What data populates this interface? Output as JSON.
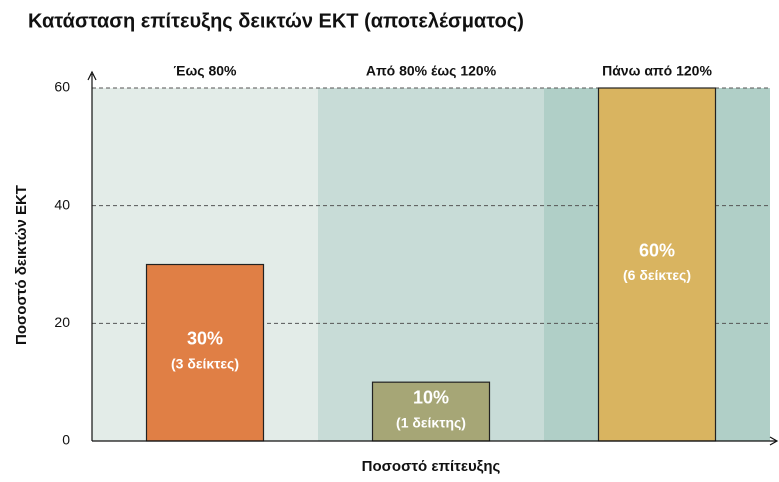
{
  "chart_data": {
    "type": "bar",
    "title": "Κατάσταση επίτευξης δεικτών ΕΚΤ (αποτελέσματος)",
    "xlabel": "Ποσοστό επίτευξης",
    "ylabel": "Ποσοστό δεικτών ΕΚΤ",
    "categories": [
      "Έως 80%",
      "Από 80% έως 120%",
      "Πάνω από 120%"
    ],
    "values": [
      30,
      10,
      60
    ],
    "value_labels": [
      "30%",
      "10%",
      "60%"
    ],
    "count_labels": [
      "(3 δείκτες)",
      "(1 δείκτης)",
      "(6 δείκτες)"
    ],
    "colors": [
      "#e07f45",
      "#a6a676",
      "#d9b460"
    ],
    "band_colors": [
      "#e3ece8",
      "#c8dcd7",
      "#b0cfc7"
    ],
    "ylim": [
      0,
      60
    ],
    "yticks": [
      0,
      20,
      40,
      60
    ],
    "grid": true
  }
}
